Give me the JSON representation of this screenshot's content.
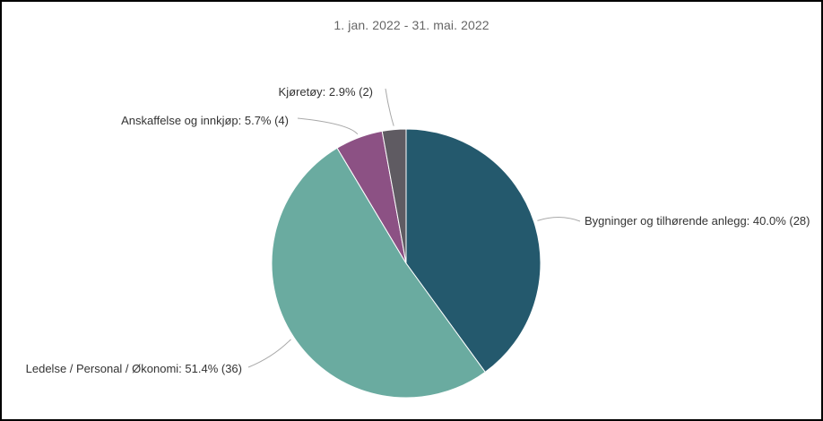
{
  "chart_data": {
    "type": "pie",
    "title": "",
    "subtitle": "1. jan. 2022 - 31. mai. 2022",
    "slices": [
      {
        "name": "Bygninger og tilhørende anlegg",
        "label": "Bygninger og tilhørende anlegg: 40.0% (28)",
        "value": 28,
        "percent": 40.0,
        "color": "#24596d"
      },
      {
        "name": "Ledelse / Personal / Økonomi",
        "label": "Ledelse / Personal / Økonomi: 51.4% (36)",
        "value": 36,
        "percent": 51.4,
        "color": "#6aaba0"
      },
      {
        "name": "Anskaffelse og innkjøp",
        "label": "Anskaffelse og innkjøp: 5.7% (4)",
        "value": 4,
        "percent": 5.7,
        "color": "#8c5184"
      },
      {
        "name": "Kjøretøy",
        "label": "Kjøretøy: 2.9% (2)",
        "value": 2,
        "percent": 2.9,
        "color": "#5f5b62"
      }
    ],
    "legend": "none"
  }
}
